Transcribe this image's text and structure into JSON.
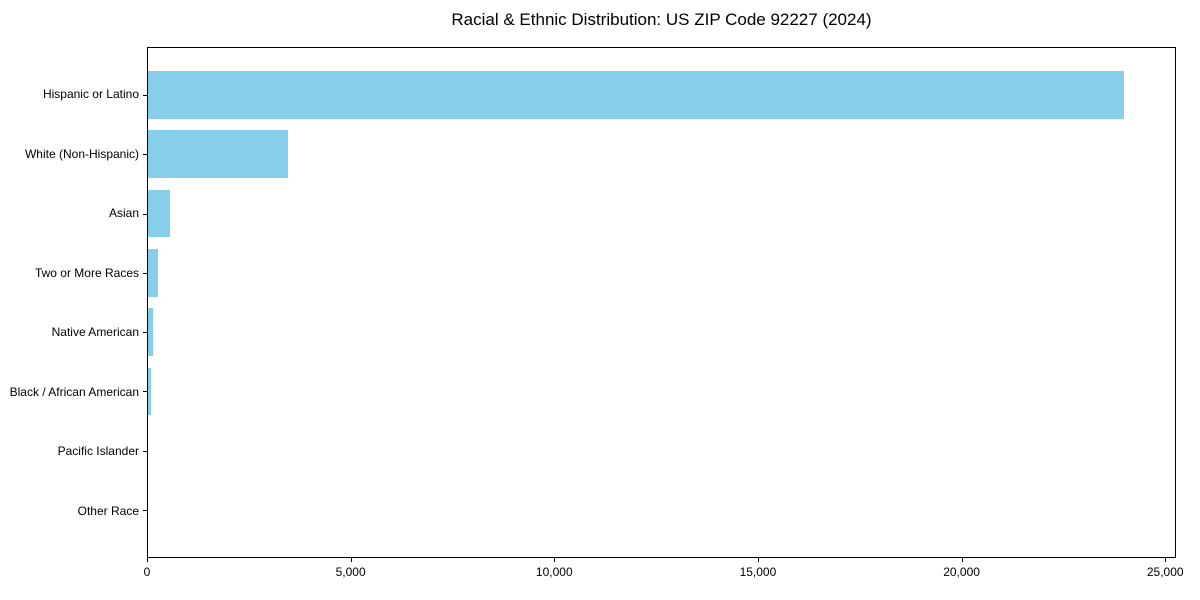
{
  "chart_data": {
    "type": "bar",
    "orientation": "horizontal",
    "title": "Racial & Ethnic Distribution: US ZIP Code 92227 (2024)",
    "categories": [
      "Hispanic or Latino",
      "White (Non-Hispanic)",
      "Asian",
      "Two or More Races",
      "Native American",
      "Black / African American",
      "Pacific Islander",
      "Other Race"
    ],
    "values": [
      24000,
      3450,
      540,
      250,
      125,
      75,
      0,
      0
    ],
    "xlabel": "",
    "ylabel": "",
    "x_ticks": [
      0,
      5000,
      10000,
      15000,
      20000,
      25000
    ],
    "x_tick_labels": [
      "0",
      "5,000",
      "10,000",
      "15,000",
      "20,000",
      "25,000"
    ],
    "xlim": [
      0,
      25265
    ],
    "bar_color": "#87CEEB",
    "background_color": "#FFFFFF",
    "spine_color": "#000000",
    "text_color": "#000000",
    "grid": false,
    "legend": false
  }
}
